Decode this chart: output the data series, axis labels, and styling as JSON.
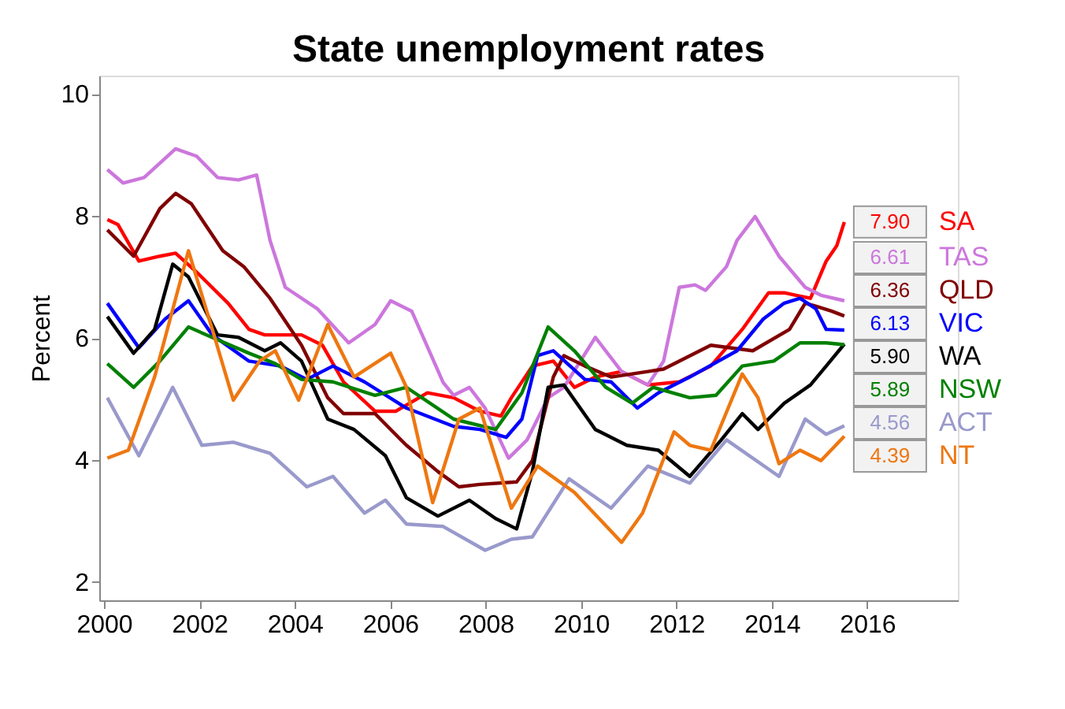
{
  "chart_data": {
    "type": "line",
    "title": "State unemployment rates",
    "ylabel": "Percent",
    "xlim": [
      1999.9,
      2017.9
    ],
    "xticks": [
      2000,
      2002,
      2004,
      2006,
      2008,
      2010,
      2012,
      2014,
      2016
    ],
    "ylim": [
      1.7,
      10.3
    ],
    "yticks": [
      2,
      4,
      6,
      8,
      10
    ],
    "grid": false,
    "legend": false,
    "marker": "none",
    "line_style": "solid",
    "series": [
      {
        "name": "SA",
        "color": "#ff0000",
        "x": [
          2000.07,
          2000.29,
          2000.73,
          2001.17,
          2001.5,
          2001.94,
          2002.6,
          2003.04,
          2003.37,
          2004.14,
          2004.58,
          2005.02,
          2005.68,
          2006.12,
          2006.78,
          2007.33,
          2007.88,
          2008.32,
          2008.54,
          2008.98,
          2009.42,
          2009.86,
          2010.3,
          2010.85,
          2011.4,
          2012.06,
          2012.72,
          2013.38,
          2013.93,
          2014.26,
          2014.81,
          2015.14,
          2015.36,
          2015.52
        ],
        "values": [
          7.94,
          7.86,
          7.26,
          7.34,
          7.39,
          7.08,
          6.57,
          6.14,
          6.05,
          6.05,
          5.88,
          5.28,
          4.8,
          4.8,
          5.1,
          5.02,
          4.8,
          4.72,
          5.02,
          5.54,
          5.62,
          5.19,
          5.36,
          5.45,
          5.23,
          5.28,
          5.54,
          6.14,
          6.74,
          6.74,
          6.65,
          7.26,
          7.51,
          7.9
        ],
        "value_labels": [
          null,
          null,
          null,
          null,
          null,
          null,
          null,
          null,
          null,
          null,
          null,
          null,
          null,
          null,
          null,
          null,
          null,
          null,
          null,
          null,
          null,
          null,
          null,
          null,
          null,
          null,
          null,
          null,
          null,
          null,
          null,
          null,
          null,
          "7.90"
        ]
      },
      {
        "name": "TAS",
        "color": "#cc77dd",
        "x": [
          2000.07,
          2000.4,
          2000.84,
          2001.5,
          2001.94,
          2002.38,
          2002.82,
          2003.2,
          2003.48,
          2003.8,
          2004.47,
          2005.13,
          2005.68,
          2006.01,
          2006.45,
          2007.11,
          2007.33,
          2007.66,
          2007.99,
          2008.48,
          2008.87,
          2009.31,
          2009.64,
          2010.3,
          2010.85,
          2011.4,
          2011.73,
          2012.06,
          2012.39,
          2012.61,
          2013.05,
          2013.27,
          2013.65,
          2014.15,
          2014.7,
          2015.03,
          2015.52
        ],
        "values": [
          8.76,
          8.54,
          8.63,
          9.1,
          8.98,
          8.63,
          8.59,
          8.67,
          7.6,
          6.83,
          6.48,
          5.92,
          6.22,
          6.61,
          6.44,
          5.27,
          5.06,
          5.19,
          4.85,
          4.03,
          4.33,
          5.02,
          5.19,
          6.01,
          5.45,
          5.23,
          5.62,
          6.83,
          6.87,
          6.78,
          7.17,
          7.6,
          7.99,
          7.34,
          6.83,
          6.7,
          6.61
        ],
        "value_labels": [
          null,
          null,
          null,
          null,
          null,
          null,
          null,
          null,
          null,
          null,
          null,
          null,
          null,
          null,
          null,
          null,
          null,
          null,
          null,
          null,
          null,
          null,
          null,
          null,
          null,
          null,
          null,
          null,
          null,
          null,
          null,
          null,
          null,
          null,
          null,
          null,
          "6.61"
        ]
      },
      {
        "name": "QLD",
        "color": "#800000",
        "x": [
          2000.07,
          2000.62,
          2001.17,
          2001.5,
          2001.83,
          2002.49,
          2002.93,
          2003.48,
          2004.14,
          2004.69,
          2005.02,
          2005.68,
          2006.34,
          2007.0,
          2007.44,
          2007.88,
          2008.65,
          2008.98,
          2009.42,
          2009.64,
          2010.08,
          2010.63,
          2011.4,
          2011.73,
          2012.72,
          2013.6,
          2014.37,
          2014.7,
          2014.92,
          2015.25,
          2015.52
        ],
        "values": [
          7.77,
          7.34,
          8.12,
          8.37,
          8.2,
          7.43,
          7.17,
          6.65,
          5.88,
          5.02,
          4.76,
          4.76,
          4.24,
          3.81,
          3.56,
          3.6,
          3.64,
          3.99,
          5.36,
          5.71,
          5.54,
          5.36,
          5.45,
          5.49,
          5.88,
          5.79,
          6.14,
          6.57,
          6.52,
          6.44,
          6.36
        ],
        "value_labels": [
          null,
          null,
          null,
          null,
          null,
          null,
          null,
          null,
          null,
          null,
          null,
          null,
          null,
          null,
          null,
          null,
          null,
          null,
          null,
          null,
          null,
          null,
          null,
          null,
          null,
          null,
          null,
          null,
          null,
          null,
          "6.36"
        ]
      },
      {
        "name": "VIC",
        "color": "#0000ff",
        "x": [
          2000.07,
          2000.73,
          2001.28,
          2001.77,
          2002.27,
          2003.04,
          2003.7,
          2004.25,
          2004.8,
          2005.46,
          2006.34,
          2007.33,
          2007.88,
          2008.43,
          2008.76,
          2009.09,
          2009.42,
          2010.08,
          2010.63,
          2011.18,
          2011.62,
          2012.28,
          2013.27,
          2013.82,
          2014.26,
          2014.59,
          2014.92,
          2015.14,
          2015.52
        ],
        "values": [
          6.57,
          5.84,
          6.31,
          6.61,
          6.05,
          5.62,
          5.54,
          5.32,
          5.54,
          5.28,
          4.85,
          4.55,
          4.5,
          4.37,
          4.67,
          5.71,
          5.79,
          5.32,
          5.28,
          4.85,
          5.1,
          5.36,
          5.79,
          6.31,
          6.57,
          6.65,
          6.48,
          6.14,
          6.13
        ],
        "value_labels": [
          null,
          null,
          null,
          null,
          null,
          null,
          null,
          null,
          null,
          null,
          null,
          null,
          null,
          null,
          null,
          null,
          null,
          null,
          null,
          null,
          null,
          null,
          null,
          null,
          null,
          null,
          null,
          null,
          "6.13"
        ]
      },
      {
        "name": "WA",
        "color": "#000000",
        "x": [
          2000.07,
          2000.62,
          2001.06,
          2001.44,
          2001.77,
          2002.38,
          2002.82,
          2003.37,
          2003.7,
          2004.14,
          2004.69,
          2005.24,
          2005.9,
          2006.34,
          2007.0,
          2007.66,
          2008.21,
          2008.65,
          2008.98,
          2009.31,
          2009.64,
          2010.3,
          2010.96,
          2011.62,
          2012.28,
          2012.94,
          2013.38,
          2013.71,
          2014.26,
          2014.81,
          2015.14,
          2015.52
        ],
        "values": [
          6.35,
          5.75,
          6.14,
          7.21,
          7.0,
          6.05,
          6.01,
          5.79,
          5.92,
          5.62,
          4.67,
          4.5,
          4.07,
          3.38,
          3.08,
          3.34,
          3.04,
          2.87,
          3.81,
          5.19,
          5.23,
          4.5,
          4.24,
          4.16,
          3.73,
          4.33,
          4.76,
          4.5,
          4.93,
          5.23,
          5.54,
          5.9
        ],
        "value_labels": [
          null,
          null,
          null,
          null,
          null,
          null,
          null,
          null,
          null,
          null,
          null,
          null,
          null,
          null,
          null,
          null,
          null,
          null,
          null,
          null,
          null,
          null,
          null,
          null,
          null,
          null,
          null,
          null,
          null,
          null,
          null,
          "5.90"
        ]
      },
      {
        "name": "NSW",
        "color": "#008000",
        "x": [
          2000.07,
          2000.62,
          2001.17,
          2001.77,
          2002.38,
          2003.04,
          2003.59,
          2004.14,
          2004.8,
          2005.68,
          2006.34,
          2007.33,
          2008.21,
          2008.76,
          2009.31,
          2009.86,
          2010.52,
          2011.07,
          2011.51,
          2012.28,
          2012.83,
          2013.38,
          2014.04,
          2014.59,
          2015.14,
          2015.52
        ],
        "values": [
          5.58,
          5.19,
          5.62,
          6.18,
          5.97,
          5.75,
          5.58,
          5.32,
          5.28,
          5.06,
          5.19,
          4.67,
          4.5,
          5.1,
          6.18,
          5.79,
          5.19,
          4.93,
          5.19,
          5.02,
          5.06,
          5.54,
          5.62,
          5.92,
          5.92,
          5.89
        ],
        "value_labels": [
          null,
          null,
          null,
          null,
          null,
          null,
          null,
          null,
          null,
          null,
          null,
          null,
          null,
          null,
          null,
          null,
          null,
          null,
          null,
          null,
          null,
          null,
          null,
          null,
          null,
          "5.89"
        ]
      },
      {
        "name": "ACT",
        "color": "#9999cc",
        "x": [
          2000.07,
          2000.73,
          2001.44,
          2002.05,
          2002.71,
          2003.48,
          2004.25,
          2004.8,
          2005.46,
          2005.9,
          2006.34,
          2007.11,
          2007.99,
          2008.54,
          2008.98,
          2009.75,
          2010.63,
          2011.4,
          2012.28,
          2013.05,
          2014.15,
          2014.7,
          2015.14,
          2015.52
        ],
        "values": [
          5.02,
          4.07,
          5.19,
          4.24,
          4.29,
          4.11,
          3.56,
          3.73,
          3.13,
          3.34,
          2.95,
          2.91,
          2.52,
          2.7,
          2.74,
          3.69,
          3.21,
          3.9,
          3.62,
          4.33,
          3.73,
          4.67,
          4.42,
          4.56
        ],
        "value_labels": [
          null,
          null,
          null,
          null,
          null,
          null,
          null,
          null,
          null,
          null,
          null,
          null,
          null,
          null,
          null,
          null,
          null,
          null,
          null,
          null,
          null,
          null,
          null,
          "4.56"
        ]
      },
      {
        "name": "NT",
        "color": "#ee7711",
        "x": [
          2000.07,
          2000.51,
          2001.06,
          2001.77,
          2002.27,
          2002.71,
          2003.26,
          2003.59,
          2004.08,
          2004.69,
          2005.24,
          2006.01,
          2006.34,
          2006.89,
          2007.44,
          2007.88,
          2008.54,
          2009.09,
          2009.86,
          2010.85,
          2011.29,
          2011.95,
          2012.28,
          2012.72,
          2013.38,
          2013.71,
          2014.15,
          2014.59,
          2015.03,
          2015.52
        ],
        "values": [
          4.03,
          4.16,
          5.36,
          7.43,
          6.14,
          4.98,
          5.62,
          5.79,
          4.98,
          6.22,
          5.36,
          5.75,
          5.19,
          3.3,
          4.67,
          4.85,
          3.21,
          3.9,
          3.47,
          2.65,
          3.13,
          4.46,
          4.24,
          4.16,
          5.41,
          5.02,
          3.94,
          4.16,
          3.99,
          4.39
        ],
        "value_labels": [
          null,
          null,
          null,
          null,
          null,
          null,
          null,
          null,
          null,
          null,
          null,
          null,
          null,
          null,
          null,
          null,
          null,
          null,
          null,
          null,
          null,
          null,
          null,
          null,
          null,
          null,
          null,
          null,
          null,
          "4.39"
        ]
      }
    ]
  }
}
